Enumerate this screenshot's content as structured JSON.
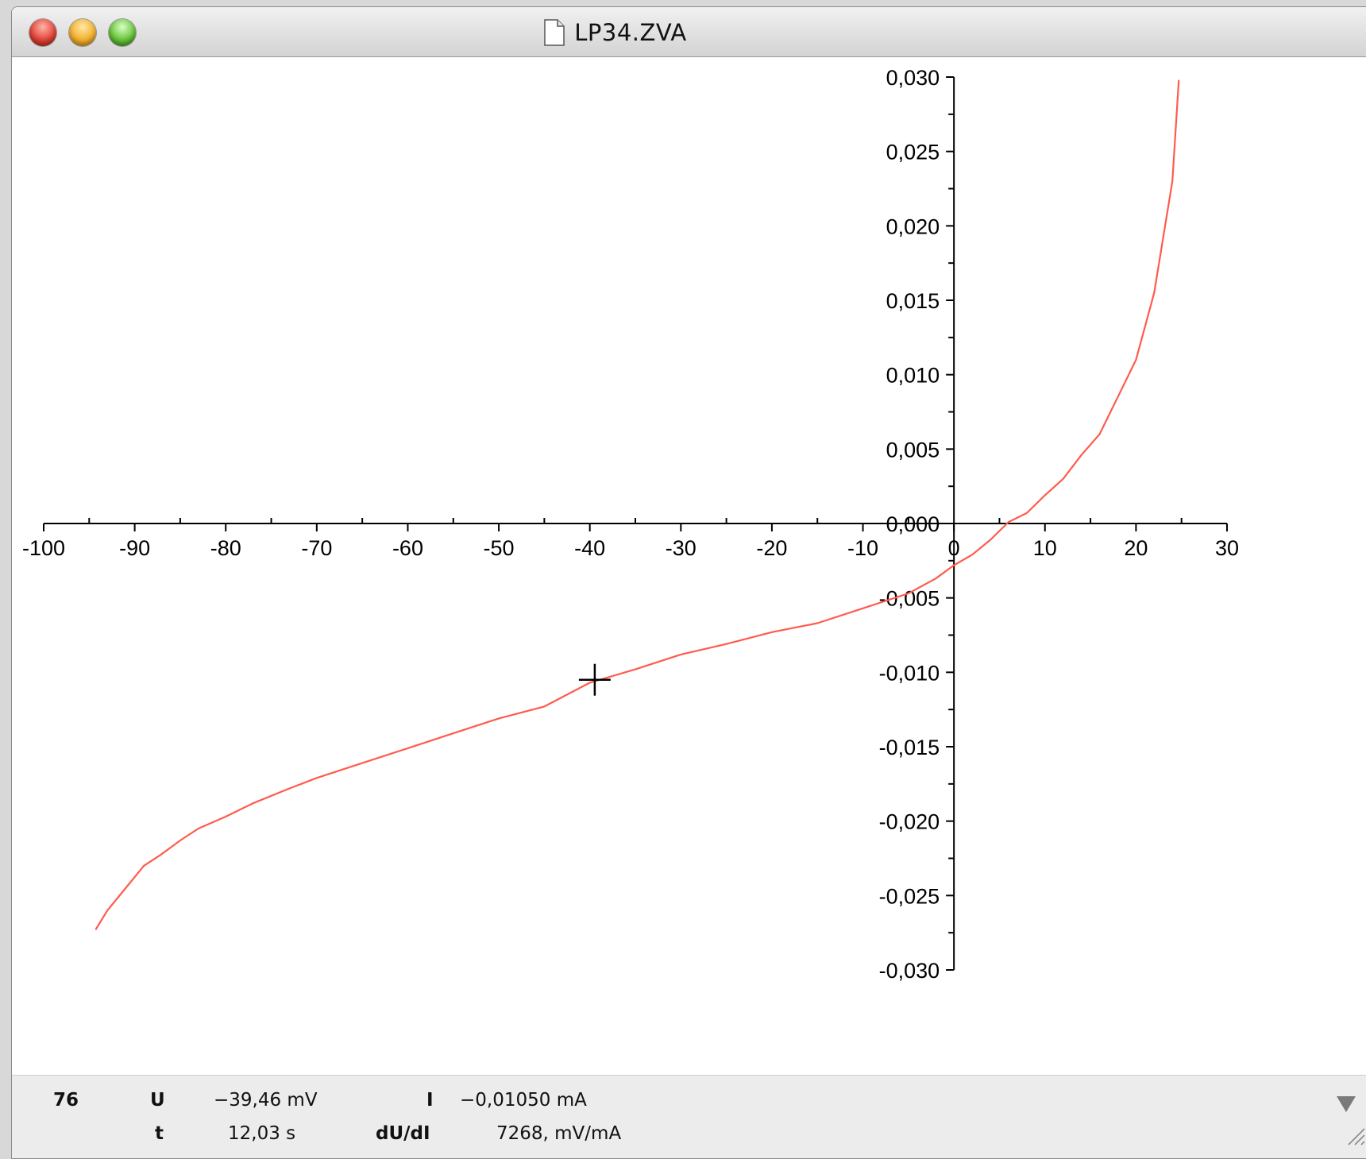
{
  "window": {
    "title": "LP34.ZVA"
  },
  "status": {
    "index": "76",
    "u_label": "U",
    "u_value": "−39,46 mV",
    "i_label": "I",
    "i_value": "−0,01050 mA",
    "t_label": "t",
    "t_value": "12,03 s",
    "dudi_label": "dU/dI",
    "dudi_value": "7268, mV/mA"
  },
  "colors": {
    "curve": "#ff5b4d",
    "axis": "#000000"
  },
  "icons": [
    "close-button-icon",
    "minimize-button-icon",
    "zoom-button-icon",
    "document-icon",
    "crosshair-cursor-icon",
    "menu-arrow-icon",
    "resize-grip-icon"
  ],
  "chart_data": {
    "type": "line",
    "xlim": [
      -100,
      30
    ],
    "ylim": [
      -0.03,
      0.03
    ],
    "x_ticks": [
      -100,
      -90,
      -80,
      -70,
      -60,
      -50,
      -40,
      -30,
      -20,
      -10,
      0,
      10,
      20,
      30
    ],
    "x_tick_labels": [
      "-100",
      "-90",
      "-80",
      "-70",
      "-60",
      "-50",
      "-40",
      "-30",
      "-20",
      "-10",
      "0",
      "10",
      "20",
      "30"
    ],
    "y_ticks": [
      0.03,
      0.025,
      0.02,
      0.015,
      0.01,
      0.005,
      0.0,
      -0.005,
      -0.01,
      -0.015,
      -0.02,
      -0.025,
      -0.03
    ],
    "y_tick_labels": [
      "0,030",
      "0,025",
      "0,020",
      "0,015",
      "0,010",
      "0,005",
      "0,000",
      "-0,005",
      "-0,010",
      "-0,015",
      "-0,020",
      "-0,025",
      "-0,030"
    ],
    "cursor": {
      "x": -39.46,
      "y": -0.0105
    },
    "series": [
      {
        "x": [
          -94.3,
          -93,
          -91,
          -89,
          -87,
          -85,
          -83,
          -80,
          -77,
          -73,
          -70,
          -65,
          -60,
          -55,
          -50,
          -45,
          -40,
          -35,
          -30,
          -25,
          -20,
          -15,
          -10,
          -5,
          -2,
          0,
          2,
          4,
          6,
          8,
          10,
          12,
          14,
          16,
          18,
          20,
          22,
          24,
          24.7
        ],
        "y": [
          -0.0273,
          -0.026,
          -0.0245,
          -0.023,
          -0.0222,
          -0.0213,
          -0.0205,
          -0.0197,
          -0.0188,
          -0.0178,
          -0.0171,
          -0.0161,
          -0.0151,
          -0.0141,
          -0.0131,
          -0.0123,
          -0.0107,
          -0.0098,
          -0.0088,
          -0.0081,
          -0.0073,
          -0.0067,
          -0.0057,
          -0.0047,
          -0.0037,
          -0.0028,
          -0.0021,
          -0.0011,
          0.0001,
          0.0007,
          0.0019,
          0.003,
          0.0046,
          0.006,
          0.0085,
          0.011,
          0.0155,
          0.023,
          0.0298
        ]
      }
    ]
  }
}
